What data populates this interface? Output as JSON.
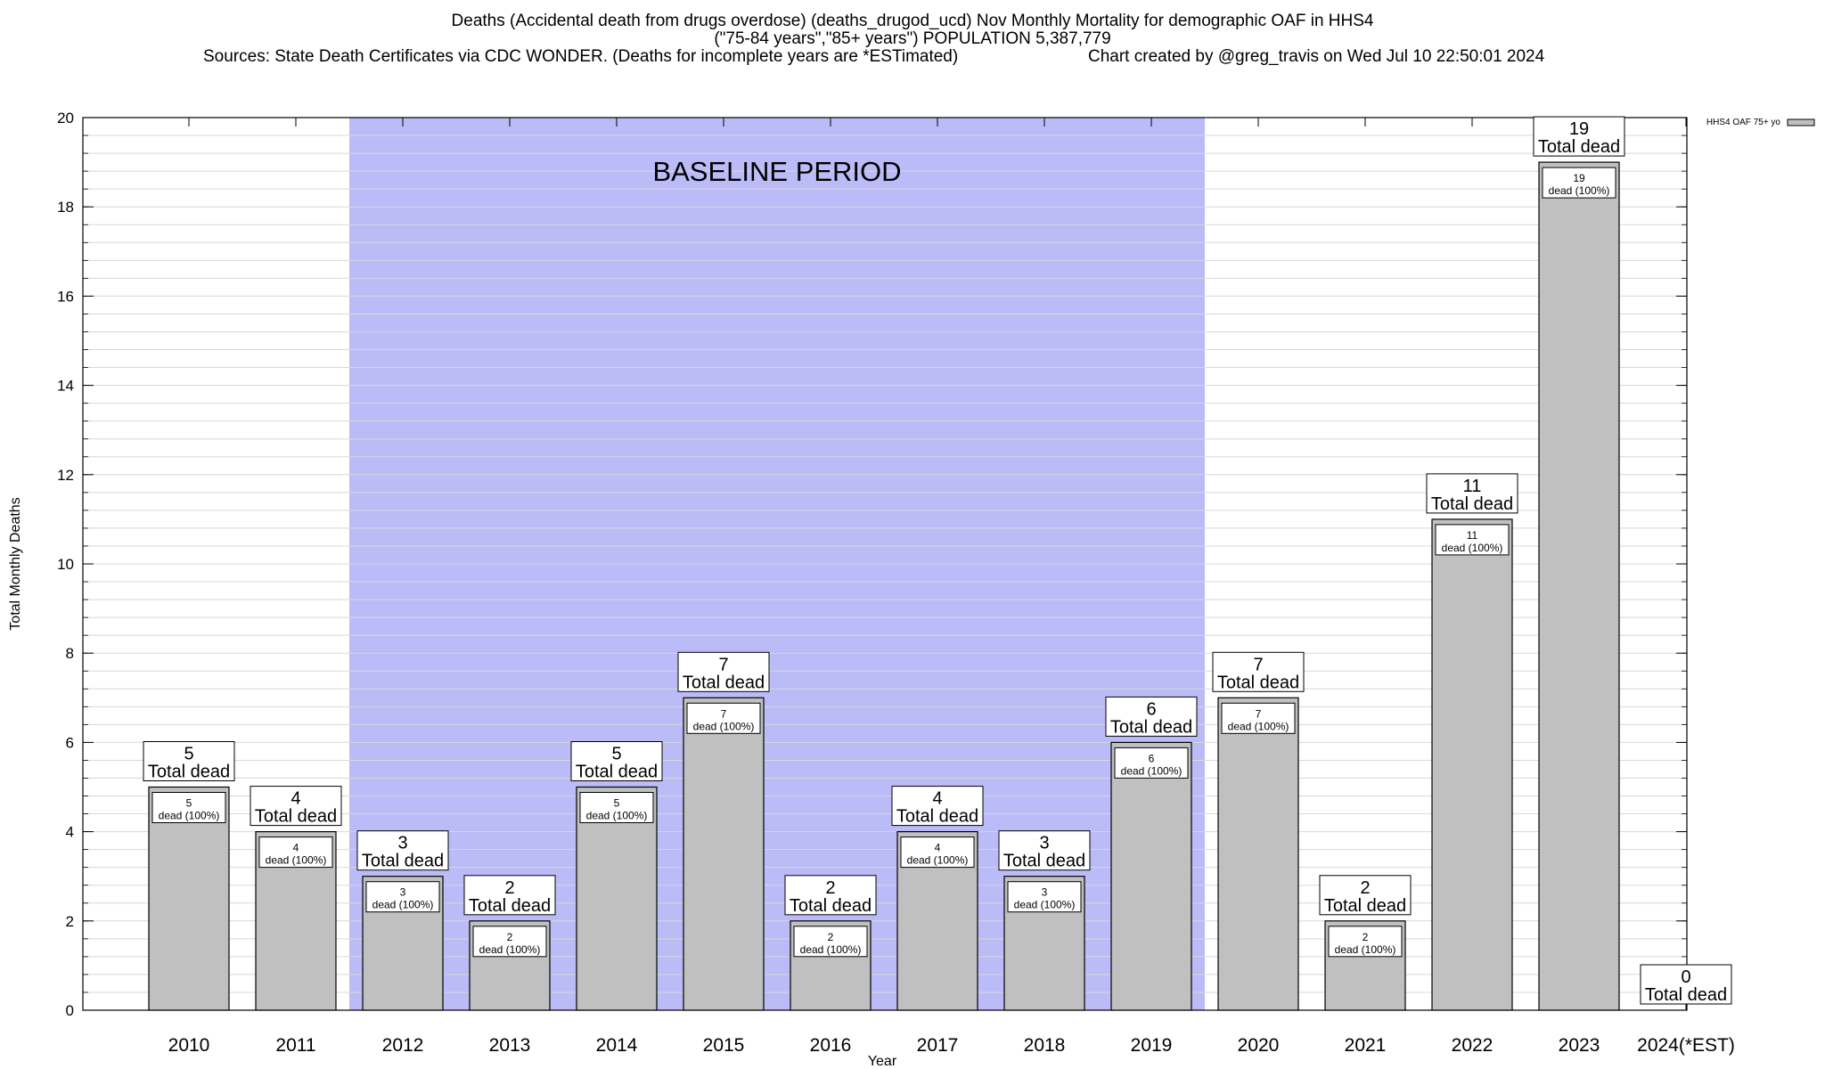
{
  "titles": {
    "line1": "Deaths (Accidental death from drugs overdose) (deaths_drugod_ucd) Nov Monthly Mortality for demographic OAF in HHS4",
    "line2": "(\"75-84 years\",\"85+ years\") POPULATION 5,387,779",
    "line3_left": "Sources: State Death Certificates via CDC WONDER. (Deaths for incomplete years are *ESTimated)",
    "line3_right": "Chart created by @greg_travis on Wed Jul 10 22:50:01 2024"
  },
  "chart_data": {
    "type": "bar",
    "title": "Deaths (Accidental death from drugs overdose) (deaths_drugod_ucd) Nov Monthly Mortality for demographic OAF in HHS4",
    "xlabel": "Year",
    "ylabel": "Total Monthly Deaths",
    "ylim": [
      0,
      20
    ],
    "yticks": [
      0,
      2,
      4,
      6,
      8,
      10,
      12,
      14,
      16,
      18,
      20
    ],
    "categories": [
      "2010",
      "2011",
      "2012",
      "2013",
      "2014",
      "2015",
      "2016",
      "2017",
      "2018",
      "2019",
      "2020",
      "2021",
      "2022",
      "2023",
      "2024(*EST)"
    ],
    "series": [
      {
        "name": "HHS4 OAF 75+ yo",
        "values": [
          5,
          4,
          3,
          2,
          5,
          7,
          2,
          4,
          3,
          6,
          7,
          2,
          11,
          19,
          0
        ],
        "color": "#c0c0c0"
      }
    ],
    "total_label": "Total dead",
    "inner_labels": [
      "dead (100%)",
      "dead (100%)",
      "dead (100%)",
      "dead (100%)",
      "dead (100%)",
      "dead (100%)",
      "dead (100%)",
      "dead (100%)",
      "dead (100%)",
      "dead (100%)",
      "dead (100%)",
      "dead (100%)",
      "dead (100%)",
      "dead (100%)",
      ""
    ],
    "baseline": {
      "label": "BASELINE PERIOD",
      "start": "2012",
      "end": "2019",
      "color": "#bbbbf8"
    },
    "legend_placement": "top-right",
    "grid": "horizontal minor"
  }
}
